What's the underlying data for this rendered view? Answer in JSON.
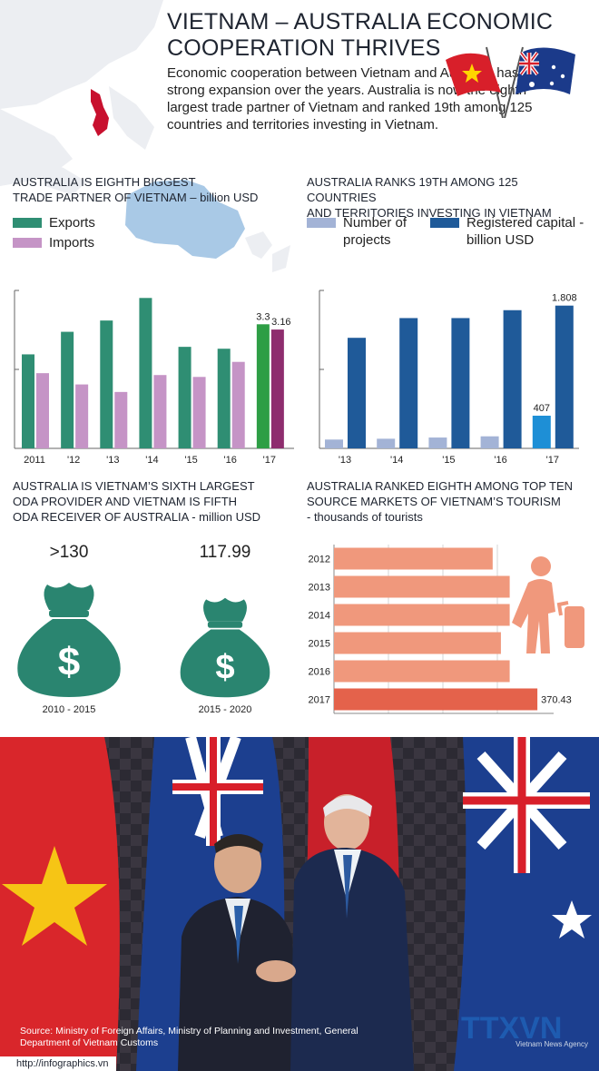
{
  "header": {
    "title_line1": "VIETNAM – AUSTRALIA ECONOMIC",
    "title_line2": "COOPERATION THRIVES",
    "intro": "Economic cooperation between Vietnam and Australia has seen strong expansion over the years. Australia is now the eighth largest trade partner of Vietnam and ranked 19th among 125 countries and territories investing in Vietnam."
  },
  "colors": {
    "exports": "#2f8e73",
    "exports_highlight": "#2e9e45",
    "imports": "#c594c6",
    "imports_highlight": "#8e2d6e",
    "projects": "#a3b3d6",
    "projects_highlight": "#1e8fd6",
    "capital": "#1f5a99",
    "money_bag": "#2a8570",
    "tourism_bar": "#f0987c",
    "tourism_highlight": "#e4624b"
  },
  "chart_data": [
    {
      "id": "trade",
      "type": "bar",
      "title_line1": "AUSTRALIA IS EIGHTH BIGGEST",
      "title_line2": "TRADE PARTNER OF VIETNAM – billion USD",
      "categories": [
        "2011",
        "'12",
        "'13",
        "'14",
        "'15",
        "'16",
        "'17"
      ],
      "series": [
        {
          "name": "Exports",
          "values": [
            2.5,
            3.1,
            3.4,
            4.0,
            2.7,
            2.65,
            3.3
          ]
        },
        {
          "name": "Imports",
          "values": [
            2.0,
            1.7,
            1.5,
            1.95,
            1.9,
            2.3,
            3.16
          ]
        }
      ],
      "data_labels": {
        "Exports": {
          "6": "3.3"
        },
        "Imports": {
          "6": "3.16"
        }
      },
      "ylim": [
        0,
        4.2
      ],
      "legend": "top-left"
    },
    {
      "id": "investment",
      "type": "bar",
      "title_line1": "AUSTRALIA RANKS 19TH AMONG 125 COUNTRIES",
      "title_line2": "AND TERRITORIES INVESTING IN VIETNAM",
      "categories": [
        "'13",
        "'14",
        "'15",
        "'16",
        "'17"
      ],
      "series": [
        {
          "name": "Number of projects",
          "values": [
            110,
            120,
            135,
            150,
            407
          ]
        },
        {
          "name": "Registered capital - billion USD",
          "values": [
            1.4,
            1.65,
            1.65,
            1.75,
            1.808
          ]
        }
      ],
      "data_labels": {
        "Number of projects": {
          "4": "407"
        },
        "Registered capital - billion USD": {
          "4": "1.808"
        }
      },
      "ylim": [
        0,
        2.0
      ],
      "legend": "top-left"
    },
    {
      "id": "oda",
      "type": "table",
      "title_line1": "AUSTRALIA IS VIETNAM’S SIXTH LARGEST",
      "title_line2": "ODA PROVIDER AND VIETNAM IS FIFTH",
      "title_line3": "ODA RECEIVER OF AUSTRALIA - million USD",
      "periods": [
        "2010 - 2015",
        "2015 - 2020"
      ],
      "values": [
        ">130",
        "117.99"
      ]
    },
    {
      "id": "tourism",
      "type": "bar",
      "orientation": "horizontal",
      "title_line1": "AUSTRALIA RANKED EIGHTH AMONG TOP TEN",
      "title_line2": "SOURCE MARKETS OF VIETNAM’S TOURISM",
      "title_line3": "- thousands of tourists",
      "categories": [
        "2012",
        "2013",
        "2014",
        "2015",
        "2016",
        "2017"
      ],
      "values": [
        289,
        320,
        320,
        304,
        320,
        370.43
      ],
      "data_labels": {
        "5": "370.43"
      },
      "xlim": [
        0,
        400
      ]
    }
  ],
  "footer": {
    "source": "Source: Ministry of Foreign Affairs, Ministry of Planning and Investment, General Department of Vietnam Customs",
    "url": "http://infographics.vn",
    "logo_text": "TTXVN",
    "logo_sub": "Vietnam News Agency"
  }
}
